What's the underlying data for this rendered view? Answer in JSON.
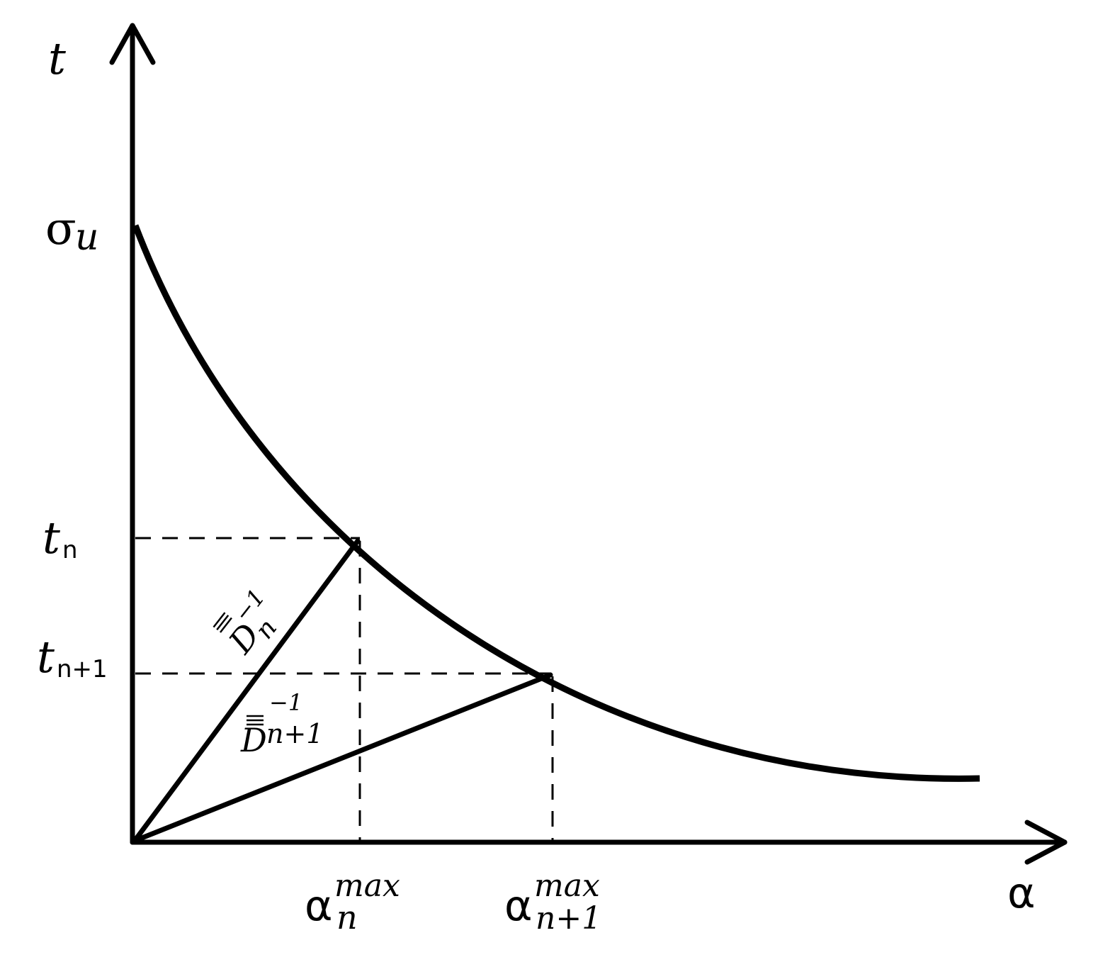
{
  "axes": {
    "y_label": "t",
    "x_label": "α"
  },
  "y_ticks": {
    "sigma_base": "σ",
    "sigma_sub": "u",
    "tn_base": "t",
    "tn_sub": "n",
    "tn1_base": "t",
    "tn1_sub": "n+1"
  },
  "x_ticks": {
    "an_base": "α",
    "an_sup": "max",
    "an_sub": "n",
    "an1_base": "α",
    "an1_sup": "max",
    "an1_sub": "n+1"
  },
  "secants": {
    "dn_base": "D",
    "dn_sup": "−1",
    "dn_sub": "n",
    "dn1_base": "D",
    "dn1_sup": "−1",
    "dn1_sub": "n+1"
  },
  "colors": {
    "stroke": "#000000",
    "background": "#ffffff"
  }
}
